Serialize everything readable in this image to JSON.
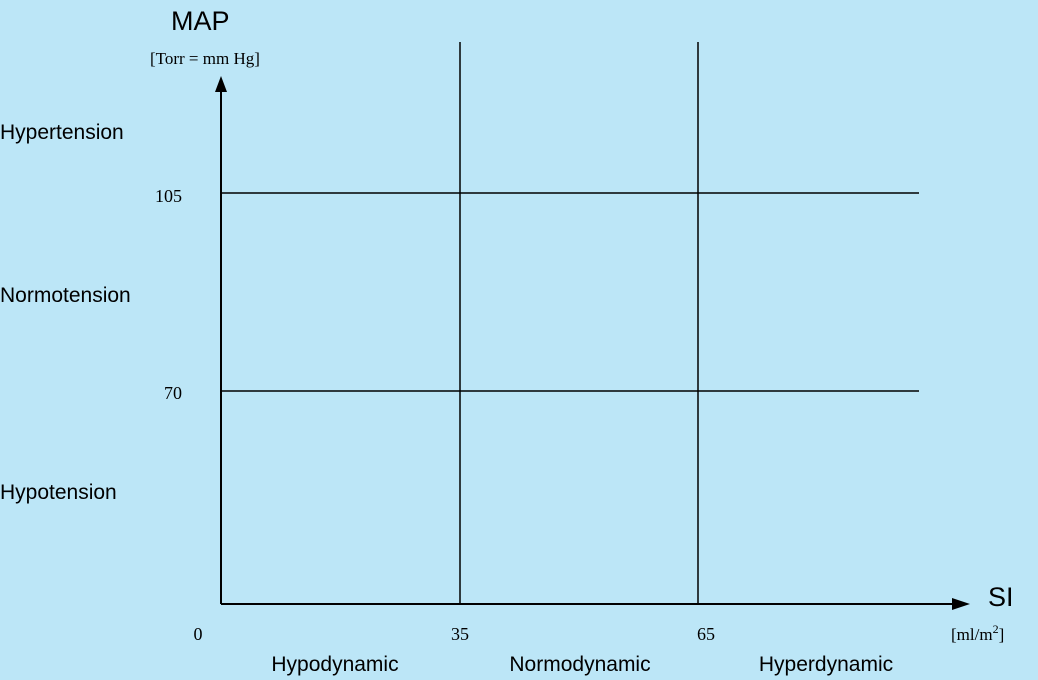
{
  "chart_data": {
    "type": "line",
    "y_axis": {
      "title": "MAP",
      "unit": "[Torr = mm Hg]",
      "thresholds": [
        {
          "value": 105,
          "label": "105"
        },
        {
          "value": 70,
          "label": "70"
        }
      ],
      "zones": [
        {
          "label": "Hypertension"
        },
        {
          "label": "Normotension"
        },
        {
          "label": "Hypotension"
        }
      ]
    },
    "x_axis": {
      "title": "SI",
      "unit_base": "[ml/m",
      "unit_sup": "2",
      "unit_close": "]",
      "origin_label": "0",
      "thresholds": [
        {
          "value": 35,
          "label": "35"
        },
        {
          "value": 65,
          "label": "65"
        }
      ],
      "zones": [
        {
          "label": "Hypodynamic"
        },
        {
          "label": "Normodynamic"
        },
        {
          "label": "Hyperdynamic"
        }
      ]
    },
    "grid": false,
    "colors": {
      "background": "#bce6f7",
      "ink": "#000000"
    }
  }
}
